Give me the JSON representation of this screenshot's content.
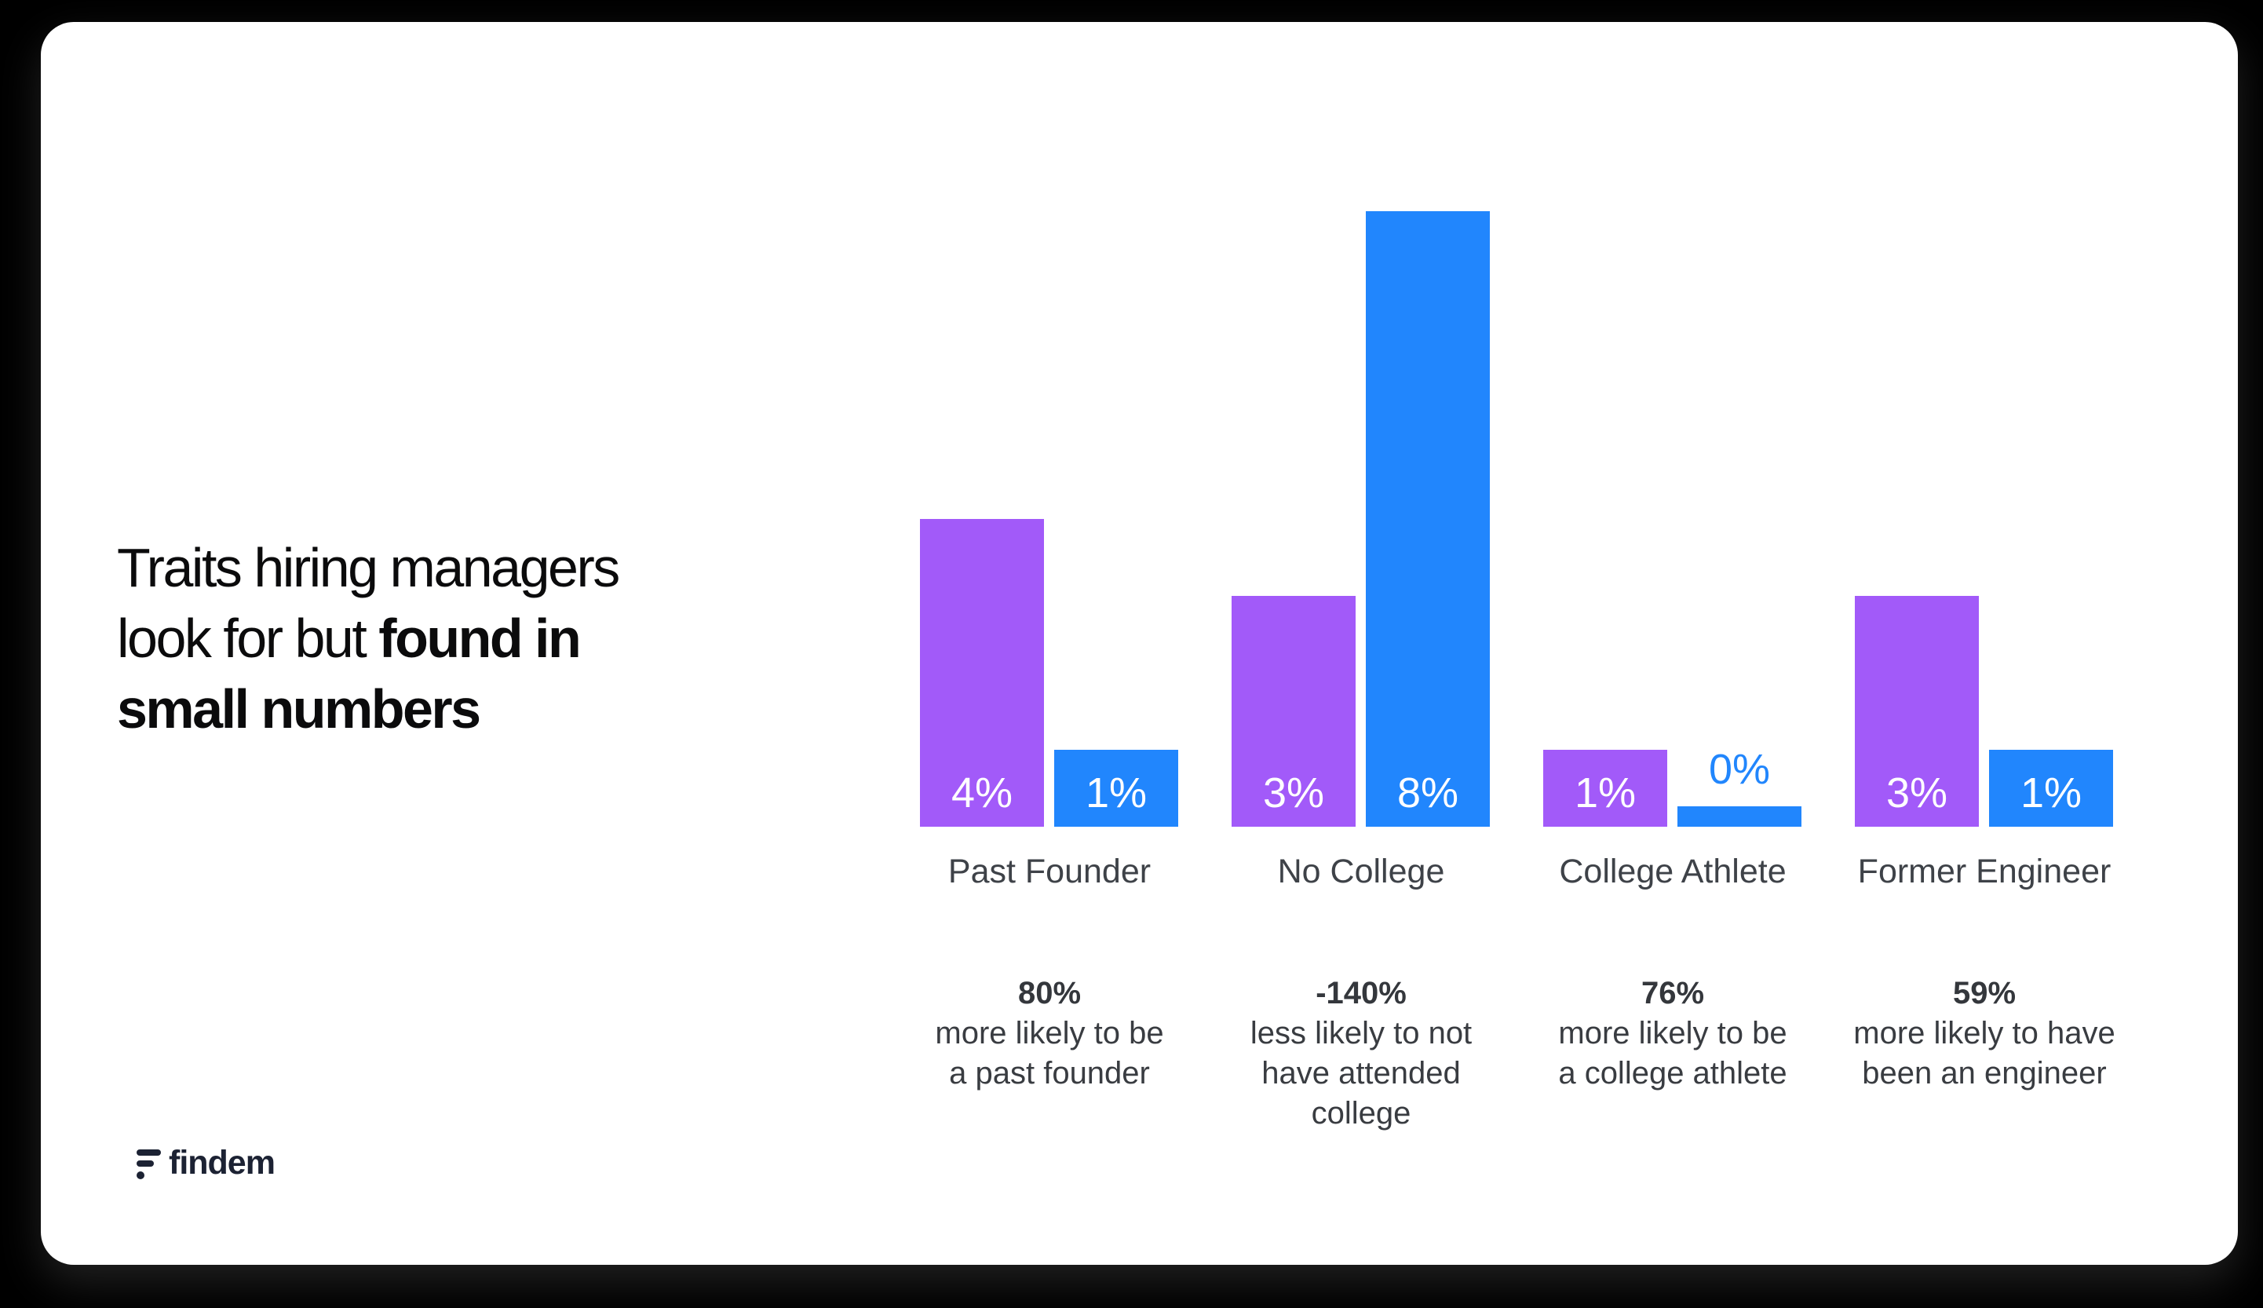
{
  "title": {
    "full_text": "Traits hiring managers look for but found in small numbers",
    "lines": [
      {
        "regular": "Traits hiring managers",
        "bold": ""
      },
      {
        "regular": "look for but ",
        "bold": "found in"
      },
      {
        "regular": "",
        "bold": "small numbers"
      }
    ]
  },
  "chart_data": {
    "type": "bar",
    "title": "Traits hiring managers look for but found in small numbers",
    "categories": [
      "Past Founder",
      "No College",
      "College Athlete",
      "Former Engineer"
    ],
    "series": [
      {
        "id": "purple",
        "color": "#A25AF9",
        "values": [
          4,
          3,
          1,
          3
        ],
        "labels": [
          "4%",
          "3%",
          "1%",
          "3%"
        ]
      },
      {
        "id": "blue",
        "color": "#2186FD",
        "values": [
          1,
          8,
          0,
          1
        ],
        "labels": [
          "1%",
          "8%",
          "0%",
          "1%"
        ]
      }
    ],
    "value_unit": "%",
    "ylim": [
      0,
      8
    ],
    "grid": false,
    "legend": "none",
    "bar_label_position": "inside-bottom; outside-top in series color when value is 0",
    "annotations": [
      {
        "value": "80%",
        "lines": [
          "more likely to be",
          "a past founder"
        ]
      },
      {
        "value": "-140%",
        "lines": [
          "less likely to not",
          "have attended",
          "college"
        ]
      },
      {
        "value": "76%",
        "lines": [
          "more likely to be",
          "a college athlete"
        ]
      },
      {
        "value": "59%",
        "lines": [
          "more likely to have",
          "been an engineer"
        ]
      }
    ]
  },
  "logo": {
    "text": "findem"
  },
  "colors": {
    "background": "#000000",
    "card": "#FFFFFF",
    "purple": "#A25AF9",
    "blue": "#2186FD",
    "title_text": "#0B0B0C",
    "category_text": "#3E4248",
    "annotation_text": "#393C41",
    "bar_label_text": "#FFFFFF",
    "logo_text": "#1C2233"
  }
}
